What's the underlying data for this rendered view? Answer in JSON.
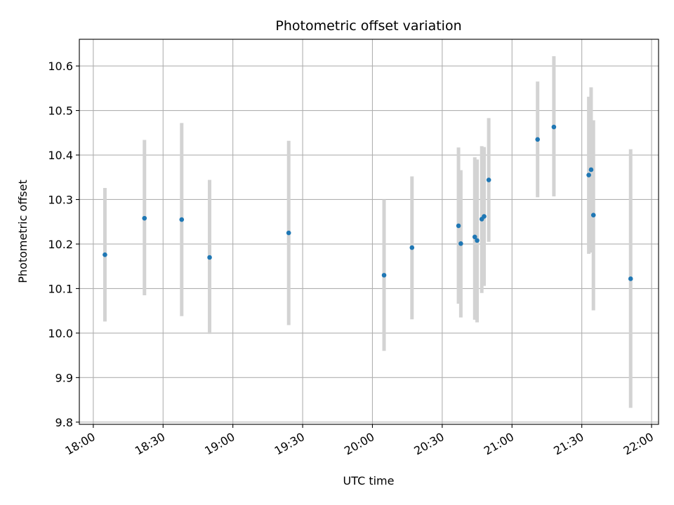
{
  "chart_data": {
    "type": "scatter",
    "title": "Photometric offset variation",
    "xlabel": "UTC time",
    "ylabel": "Photometric offset",
    "x_tick_labels": [
      "18:00",
      "18:30",
      "19:00",
      "19:30",
      "20:00",
      "20:30",
      "21:00",
      "21:30",
      "22:00"
    ],
    "y_tick_labels": [
      "9.8",
      "9.9",
      "10.0",
      "10.1",
      "10.2",
      "10.3",
      "10.4",
      "10.5",
      "10.6"
    ],
    "xlim": [
      "17:54",
      "22:03"
    ],
    "ylim": [
      9.795,
      10.66
    ],
    "grid": true,
    "colors": {
      "point": "#1f77b4",
      "errorbar": "#d3d3d3",
      "grid": "#b0b0b0",
      "axis": "#000000"
    },
    "points": [
      {
        "x": "18:05",
        "y": 10.176,
        "y_low": 10.026,
        "y_high": 10.326
      },
      {
        "x": "18:22",
        "y": 10.258,
        "y_low": 10.085,
        "y_high": 10.434
      },
      {
        "x": "18:38",
        "y": 10.255,
        "y_low": 10.038,
        "y_high": 10.472
      },
      {
        "x": "18:50",
        "y": 10.17,
        "y_low": 9.998,
        "y_high": 10.344
      },
      {
        "x": "19:24",
        "y": 10.225,
        "y_low": 10.018,
        "y_high": 10.432
      },
      {
        "x": "20:05",
        "y": 10.13,
        "y_low": 9.96,
        "y_high": 10.3
      },
      {
        "x": "20:17",
        "y": 10.192,
        "y_low": 10.031,
        "y_high": 10.352
      },
      {
        "x": "20:37",
        "y": 10.241,
        "y_low": 10.066,
        "y_high": 10.417
      },
      {
        "x": "20:38",
        "y": 10.201,
        "y_low": 10.035,
        "y_high": 10.366
      },
      {
        "x": "20:44",
        "y": 10.216,
        "y_low": 10.03,
        "y_high": 10.395
      },
      {
        "x": "20:45",
        "y": 10.208,
        "y_low": 10.024,
        "y_high": 10.39
      },
      {
        "x": "20:47",
        "y": 10.256,
        "y_low": 10.09,
        "y_high": 10.42
      },
      {
        "x": "20:48",
        "y": 10.262,
        "y_low": 10.106,
        "y_high": 10.418
      },
      {
        "x": "20:50",
        "y": 10.344,
        "y_low": 10.205,
        "y_high": 10.483
      },
      {
        "x": "21:11",
        "y": 10.435,
        "y_low": 10.305,
        "y_high": 10.565
      },
      {
        "x": "21:18",
        "y": 10.463,
        "y_low": 10.307,
        "y_high": 10.622
      },
      {
        "x": "21:33",
        "y": 10.355,
        "y_low": 10.178,
        "y_high": 10.531
      },
      {
        "x": "21:34",
        "y": 10.367,
        "y_low": 10.181,
        "y_high": 10.552
      },
      {
        "x": "21:35",
        "y": 10.265,
        "y_low": 10.051,
        "y_high": 10.478
      },
      {
        "x": "21:51",
        "y": 10.122,
        "y_low": 9.832,
        "y_high": 10.413
      }
    ]
  }
}
